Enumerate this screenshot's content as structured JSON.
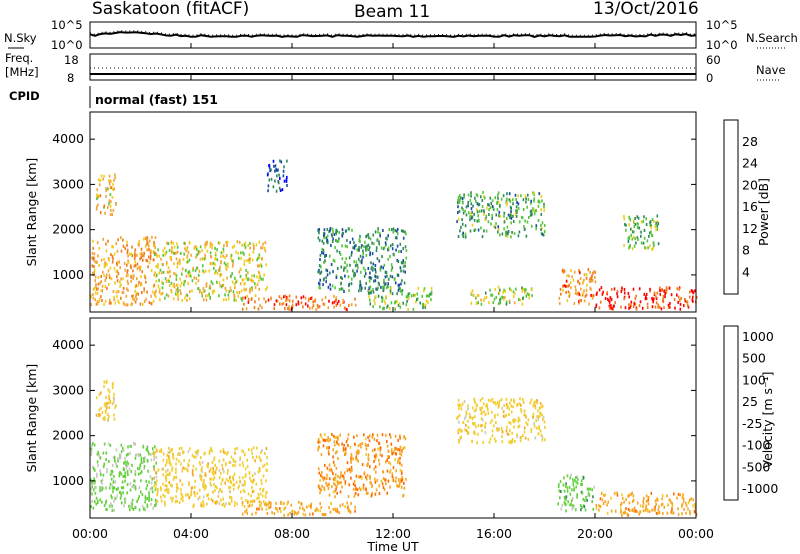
{
  "header": {
    "station": "Saskatoon (fitACF)",
    "beam": "Beam 11",
    "date": "13/Oct/2016"
  },
  "noise_panel": {
    "left_label": "N.Sky",
    "right_label": "N.Search",
    "left_ticks": [
      "10^5",
      "10^0"
    ],
    "right_ticks": [
      "10^5",
      "10^0"
    ]
  },
  "freq_panel": {
    "left_label_1": "Freq.",
    "left_label_2": "[MHz]",
    "right_label": "Nave",
    "left_ticks": [
      "18",
      "8"
    ],
    "right_ticks": [
      "60",
      "0"
    ]
  },
  "cpid": {
    "label": "CPID",
    "value": "normal (fast) 151"
  },
  "colors": {
    "power": [
      "#0000ff",
      "#1c4aa3",
      "#2f8a57",
      "#55c63a",
      "#f1cc1b",
      "#f3a33a",
      "#f07a1c",
      "#ff0000"
    ],
    "velocity": [
      "#ff0000",
      "#ff6a00",
      "#f5a623",
      "#f2cd30",
      "#c8c8c0",
      "#62d13a",
      "#2e8b57",
      "#1f4fa3"
    ]
  },
  "chart_data": [
    {
      "type": "heatmap",
      "title": "",
      "ylabel": "Slant Range [km]",
      "xlabel": "",
      "x_ticks": [
        "00:00",
        "04:00",
        "08:00",
        "12:00",
        "16:00",
        "20:00",
        "00:00"
      ],
      "y_ticks": [
        1000,
        2000,
        3000,
        4000
      ],
      "ylim": [
        180,
        4600
      ],
      "xlim_hours": [
        0,
        24
      ],
      "colorbar": {
        "label": "Power [dB]",
        "ticks": [
          "4",
          "8",
          "12",
          "16",
          "20",
          "24",
          "28"
        ],
        "range": [
          0,
          32
        ]
      },
      "regions": [
        {
          "t0": 0.0,
          "t1": 2.6,
          "r0": 300,
          "r1": 1800,
          "value": 22
        },
        {
          "t0": 0.2,
          "t1": 1.0,
          "r0": 2300,
          "r1": 3200,
          "value": 20
        },
        {
          "t0": 2.5,
          "t1": 7.0,
          "r0": 400,
          "r1": 1700,
          "value": 18
        },
        {
          "t0": 6.0,
          "t1": 10.5,
          "r0": 200,
          "r1": 500,
          "value": 26
        },
        {
          "t0": 7.0,
          "t1": 7.8,
          "r0": 2800,
          "r1": 3500,
          "value": 6
        },
        {
          "t0": 9.0,
          "t1": 12.5,
          "r0": 600,
          "r1": 2000,
          "value": 10
        },
        {
          "t0": 11.0,
          "t1": 13.5,
          "r0": 200,
          "r1": 700,
          "value": 14
        },
        {
          "t0": 14.5,
          "t1": 18.0,
          "r0": 1800,
          "r1": 2800,
          "value": 12
        },
        {
          "t0": 15.0,
          "t1": 17.5,
          "r0": 300,
          "r1": 700,
          "value": 16
        },
        {
          "t0": 18.5,
          "t1": 20.0,
          "r0": 300,
          "r1": 1100,
          "value": 24
        },
        {
          "t0": 20.0,
          "t1": 24.0,
          "r0": 200,
          "r1": 700,
          "value": 29
        },
        {
          "t0": 21.0,
          "t1": 22.5,
          "r0": 1500,
          "r1": 2300,
          "value": 14
        }
      ]
    },
    {
      "type": "heatmap",
      "title": "",
      "ylabel": "Slant Range [km]",
      "xlabel": "Time UT",
      "x_ticks": [
        "00:00",
        "04:00",
        "08:00",
        "12:00",
        "16:00",
        "20:00",
        "00:00"
      ],
      "y_ticks": [
        1000,
        2000,
        3000,
        4000
      ],
      "ylim": [
        180,
        4600
      ],
      "xlim_hours": [
        0,
        24
      ],
      "colorbar": {
        "label": "Velocity [m s⁻¹]",
        "ticks": [
          "-1000",
          "-500",
          "-100",
          "-25",
          "25",
          "100",
          "500",
          "1000"
        ]
      },
      "regions": [
        {
          "t0": 0.0,
          "t1": 2.6,
          "r0": 300,
          "r1": 1800,
          "value": 150
        },
        {
          "t0": 0.2,
          "t1": 1.0,
          "r0": 2300,
          "r1": 3200,
          "value": 0
        },
        {
          "t0": 2.5,
          "t1": 7.0,
          "r0": 400,
          "r1": 1700,
          "value": 0
        },
        {
          "t0": 6.0,
          "t1": 10.5,
          "r0": 200,
          "r1": 500,
          "value": -60
        },
        {
          "t0": 9.0,
          "t1": 12.5,
          "r0": 600,
          "r1": 2000,
          "value": -80
        },
        {
          "t0": 14.5,
          "t1": 18.0,
          "r0": 1800,
          "r1": 2800,
          "value": 0
        },
        {
          "t0": 18.5,
          "t1": 20.0,
          "r0": 300,
          "r1": 1100,
          "value": 300
        },
        {
          "t0": 20.0,
          "t1": 24.0,
          "r0": 200,
          "r1": 700,
          "value": -60
        }
      ]
    }
  ]
}
